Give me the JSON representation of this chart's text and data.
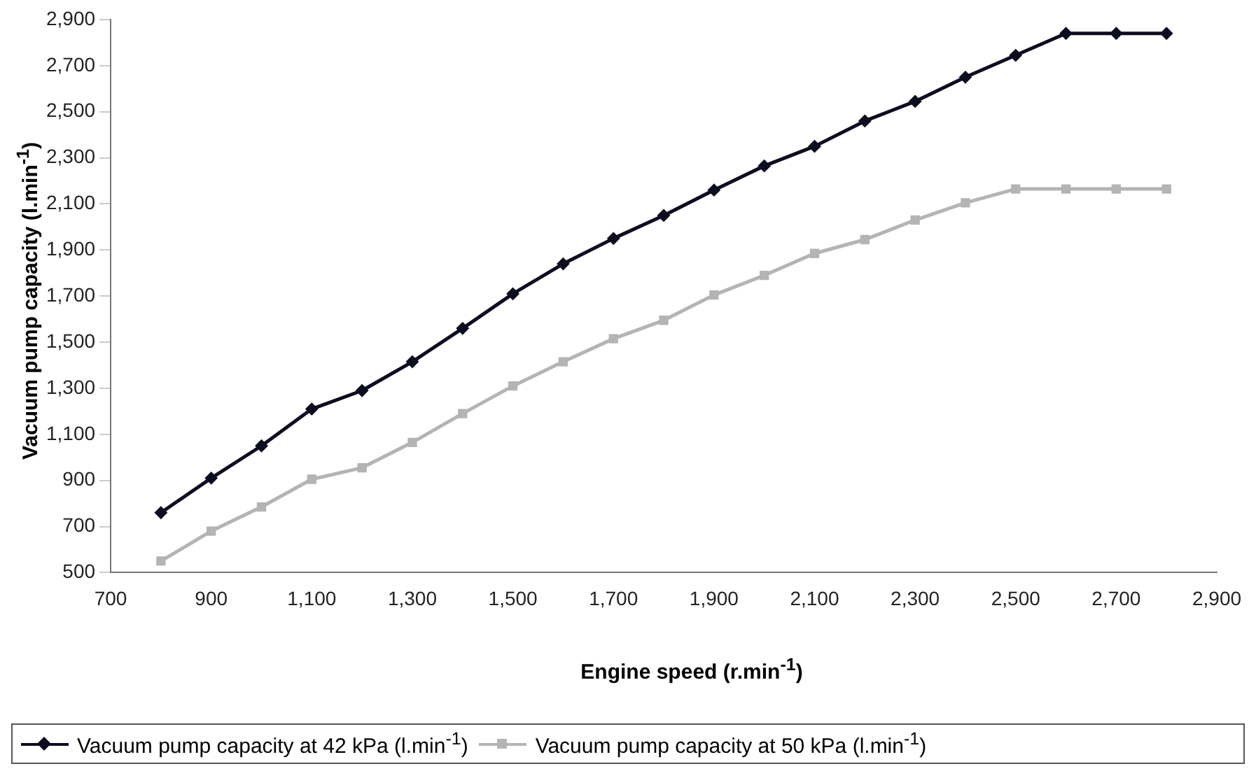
{
  "chart_data": {
    "type": "line",
    "xlabel": "Engine speed (r.min$^{-1}$)",
    "ylabel": "Vacuum pump capacity (l.min$^{-1}$)",
    "x": [
      800,
      900,
      1000,
      1100,
      1200,
      1300,
      1400,
      1500,
      1600,
      1700,
      1800,
      1900,
      2000,
      2100,
      2200,
      2300,
      2400,
      2500,
      2600,
      2700,
      2800
    ],
    "xlim": [
      700,
      2900
    ],
    "xticks": [
      {
        "value": 700,
        "label": "700"
      },
      {
        "value": 900,
        "label": "900"
      },
      {
        "value": 1100,
        "label": "1,100"
      },
      {
        "value": 1300,
        "label": "1,300"
      },
      {
        "value": 1500,
        "label": "1,500"
      },
      {
        "value": 1700,
        "label": "1,700"
      },
      {
        "value": 1900,
        "label": "1,900"
      },
      {
        "value": 2100,
        "label": "2,100"
      },
      {
        "value": 2300,
        "label": "2,300"
      },
      {
        "value": 2500,
        "label": "2,500"
      },
      {
        "value": 2700,
        "label": "2,700"
      },
      {
        "value": 2900,
        "label": "2,900"
      }
    ],
    "ylim": [
      500,
      2900
    ],
    "yticks": [
      {
        "value": 500,
        "label": "500"
      },
      {
        "value": 700,
        "label": "700"
      },
      {
        "value": 900,
        "label": "900"
      },
      {
        "value": 1100,
        "label": "1,100"
      },
      {
        "value": 1300,
        "label": "1,300"
      },
      {
        "value": 1500,
        "label": "1,500"
      },
      {
        "value": 1700,
        "label": "1,700"
      },
      {
        "value": 1900,
        "label": "1,900"
      },
      {
        "value": 2100,
        "label": "2,100"
      },
      {
        "value": 2300,
        "label": "2,300"
      },
      {
        "value": 2500,
        "label": "2,500"
      },
      {
        "value": 2700,
        "label": "2,700"
      },
      {
        "value": 2900,
        "label": "2,900"
      }
    ],
    "grid": false,
    "legend": "bottom",
    "series": [
      {
        "name": "Vacuum pump capacity at 42 kPa (l.min$^{-1}$)",
        "color": "#0d0d1f",
        "marker": "diamond",
        "values": [
          760,
          910,
          1050,
          1210,
          1290,
          1415,
          1560,
          1710,
          1840,
          1950,
          2050,
          2160,
          2265,
          2350,
          2460,
          2545,
          2650,
          2745,
          2840,
          2840,
          2840
        ]
      },
      {
        "name": "Vacuum pump capacity at 50 kPa (l.min$^{-1}$)",
        "color": "#b4b4b4",
        "marker": "square",
        "values": [
          550,
          680,
          785,
          905,
          955,
          1065,
          1190,
          1310,
          1415,
          1515,
          1595,
          1705,
          1790,
          1885,
          1945,
          2030,
          2105,
          2165,
          2165,
          2165,
          2165
        ]
      }
    ]
  }
}
